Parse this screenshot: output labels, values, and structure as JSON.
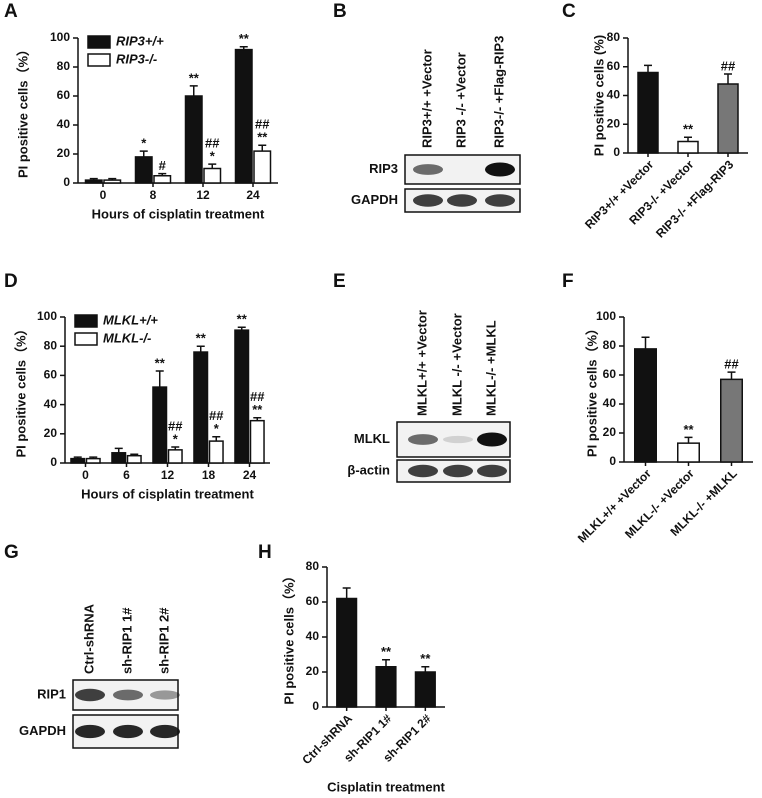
{
  "chart_data": [
    {
      "type": "bar",
      "panel": "A",
      "x_label": "Hours of cisplatin treatment",
      "y_label": "PI positive cells（%）",
      "categories": [
        "0",
        "8",
        "12",
        "24"
      ],
      "ylim": [
        0,
        100
      ],
      "yticks": [
        0,
        20,
        40,
        60,
        80,
        100
      ],
      "legend": "upper left",
      "series": [
        {
          "name": "RIP3+/+",
          "color": "#111111",
          "values": [
            2,
            18,
            60,
            92
          ],
          "errors": [
            1,
            4,
            7,
            2
          ],
          "annotations": [
            [],
            [
              "*"
            ],
            [
              "**"
            ],
            [
              "**"
            ]
          ]
        },
        {
          "name": "RIP3-/-",
          "color": "#ffffff",
          "values": [
            2,
            5,
            10,
            22
          ],
          "errors": [
            1,
            1.5,
            3,
            4
          ],
          "annotations": [
            [],
            [
              "#"
            ],
            [
              "##",
              "*"
            ],
            [
              "##",
              "**"
            ]
          ]
        }
      ]
    },
    {
      "type": "bar",
      "panel": "C",
      "y_label": "PI positive cells (%)",
      "categories": [
        "RIP3+/+ +Vector",
        "RIP3-/- +Vector",
        "RIP3-/- +Flag-RIP3"
      ],
      "ylim": [
        0,
        80
      ],
      "yticks": [
        0,
        20,
        40,
        60,
        80
      ],
      "values": [
        56,
        8,
        48
      ],
      "errors": [
        5,
        3,
        7
      ],
      "colors": [
        "#111111",
        "#ffffff",
        "#777777"
      ],
      "annotations": [
        [],
        [
          "**"
        ],
        [
          "##"
        ]
      ]
    },
    {
      "type": "bar",
      "panel": "D",
      "x_label": "Hours of cisplatin treatment",
      "y_label": "PI positive cells（%）",
      "categories": [
        "0",
        "6",
        "12",
        "18",
        "24"
      ],
      "ylim": [
        0,
        100
      ],
      "yticks": [
        0,
        20,
        40,
        60,
        80,
        100
      ],
      "legend": "upper left",
      "series": [
        {
          "name": "MLKL+/+",
          "color": "#111111",
          "values": [
            3,
            7,
            52,
            76,
            91
          ],
          "errors": [
            1,
            3,
            11,
            4,
            2
          ],
          "annotations": [
            [],
            [],
            [
              "**"
            ],
            [
              "**"
            ],
            [
              "**"
            ]
          ]
        },
        {
          "name": "MLKL-/-",
          "color": "#ffffff",
          "values": [
            3,
            5,
            9,
            15,
            29
          ],
          "errors": [
            1,
            1,
            2,
            3,
            2
          ],
          "annotations": [
            [],
            [],
            [
              "##",
              "*"
            ],
            [
              "##",
              "*"
            ],
            [
              "##",
              "**"
            ]
          ]
        }
      ]
    },
    {
      "type": "bar",
      "panel": "F",
      "y_label": "PI positive cells（%）",
      "categories": [
        "MLKL+/+ +Vector",
        "MLKL-/- +Vector",
        "MLKL-/- +MLKL"
      ],
      "ylim": [
        0,
        100
      ],
      "yticks": [
        0,
        20,
        40,
        60,
        80,
        100
      ],
      "values": [
        78,
        13,
        57
      ],
      "errors": [
        8,
        4,
        5
      ],
      "colors": [
        "#111111",
        "#ffffff",
        "#777777"
      ],
      "annotations": [
        [],
        [
          "**"
        ],
        [
          "##"
        ]
      ]
    },
    {
      "type": "bar",
      "panel": "H",
      "x_label": "Cisplatin treatment",
      "y_label": "PI positive cells（%）",
      "categories": [
        "Ctrl-shRNA",
        "sh-RIP1 1#",
        "sh-RIP1 2#"
      ],
      "ylim": [
        0,
        80
      ],
      "yticks": [
        0,
        20,
        40,
        60,
        80
      ],
      "values": [
        62,
        23,
        20
      ],
      "errors": [
        6,
        4,
        3
      ],
      "colors": [
        "#111111",
        "#111111",
        "#111111"
      ],
      "annotations": [
        [],
        [
          "**"
        ],
        [
          "**"
        ]
      ]
    }
  ],
  "blots": [
    {
      "panel": "B",
      "lanes": [
        "RIP3+/+ +Vector",
        "RIP3 -/- +Vector",
        "RIP3-/- +Flag-RIP3"
      ],
      "rows": [
        "RIP3",
        "GAPDH"
      ]
    },
    {
      "panel": "E",
      "lanes": [
        "MLKL+/+ +Vector",
        "MLKL -/- +Vector",
        "MLKL-/- +MLKL"
      ],
      "rows": [
        "MLKL",
        "β-actin"
      ]
    },
    {
      "panel": "G",
      "lanes": [
        "Ctrl-shRNA",
        "sh-RIP1 1#",
        "sh-RIP1 2#"
      ],
      "rows": [
        "RIP1",
        "GAPDH"
      ]
    }
  ]
}
